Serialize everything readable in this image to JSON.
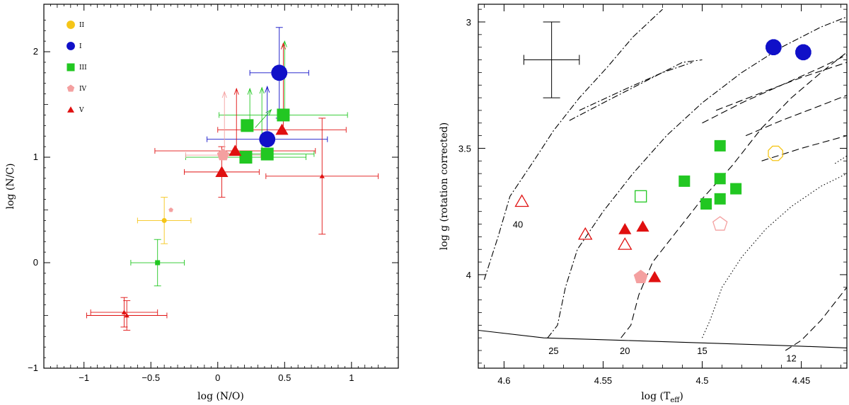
{
  "chart_data": [
    {
      "type": "scatter",
      "xlabel": "log (N/O)",
      "ylabel": "log (N/C)",
      "xlim": [
        -1.3,
        1.35
      ],
      "ylim": [
        -1.0,
        2.45
      ],
      "xticks": [
        -1,
        -0.5,
        0,
        0.5,
        1
      ],
      "xtick_labels": [
        "−1",
        "−0.5",
        "0",
        "0.5",
        "1"
      ],
      "yticks": [
        -1,
        0,
        1,
        2
      ],
      "ytick_labels": [
        "−1",
        "0",
        "1",
        "2"
      ],
      "legend_position": "top-left",
      "legend": [
        {
          "label": "II",
          "marker": "circle",
          "color": "#f5c518"
        },
        {
          "label": "I",
          "marker": "circle",
          "color": "#1010c8"
        },
        {
          "label": "III",
          "marker": "square",
          "color": "#22c722"
        },
        {
          "label": "IV",
          "marker": "pentagon",
          "color": "#f4a0a0"
        },
        {
          "label": "V",
          "marker": "triangle",
          "color": "#e01010"
        }
      ],
      "points": [
        {
          "cls": "II",
          "x": -0.4,
          "y": 0.4,
          "xerr": 0.2,
          "yerr": 0.22,
          "big": false
        },
        {
          "cls": "IV",
          "x": -0.35,
          "y": 0.5,
          "xerr": 0,
          "yerr": 0,
          "big": false
        },
        {
          "cls": "III",
          "x": -0.45,
          "y": 0.0,
          "xerr": 0.2,
          "yerr": 0.22,
          "big": false
        },
        {
          "cls": "V",
          "x": -0.7,
          "y": -0.47,
          "xerr": 0.25,
          "yerr": 0.14,
          "big": false
        },
        {
          "cls": "V",
          "x": -0.68,
          "y": -0.5,
          "xerr": 0.3,
          "yerr": 0.14,
          "big": false
        },
        {
          "cls": "I",
          "x": 0.46,
          "y": 1.8,
          "xerr": 0.22,
          "yerr": 0.43,
          "big": true
        },
        {
          "cls": "I",
          "x": 0.37,
          "y": 1.17,
          "xerr": 0.45,
          "yerr": 0,
          "big": true
        },
        {
          "cls": "III",
          "x": 0.22,
          "y": 1.3,
          "xerr": 0,
          "yerr": 0,
          "big": true
        },
        {
          "cls": "III",
          "x": 0.49,
          "y": 1.4,
          "xerr": 0.48,
          "yerr": 0,
          "big": true
        },
        {
          "cls": "III",
          "x": 0.21,
          "y": 1.0,
          "xerr": 0.45,
          "yerr": 0,
          "big": true
        },
        {
          "cls": "III",
          "x": 0.37,
          "y": 1.03,
          "xerr": 0.35,
          "yerr": 0,
          "big": true
        },
        {
          "cls": "IV",
          "x": 0.04,
          "y": 1.02,
          "xerr": 0.28,
          "yerr": 0,
          "big": true
        },
        {
          "cls": "V",
          "x": 0.13,
          "y": 1.06,
          "xerr": 0.6,
          "yerr": 0,
          "big": true
        },
        {
          "cls": "V",
          "x": 0.48,
          "y": 1.26,
          "xerr": 0.48,
          "yerr": 0,
          "big": true
        },
        {
          "cls": "V",
          "x": 0.03,
          "y": 0.86,
          "xerr": 0.28,
          "yerr": 0.24,
          "big": true
        },
        {
          "cls": "V",
          "x": 0.78,
          "y": 0.82,
          "xerr": 0.42,
          "yerr": 0.55,
          "big": false
        }
      ],
      "arrows": [
        {
          "cls": "IV",
          "x": 0.05,
          "y0": 1.05,
          "y1": 1.62
        },
        {
          "cls": "V",
          "x": 0.14,
          "y0": 1.08,
          "y1": 1.65
        },
        {
          "cls": "III",
          "x": 0.24,
          "y0": 1.33,
          "y1": 1.65
        },
        {
          "cls": "III",
          "x": 0.33,
          "y0": 1.05,
          "y1": 1.66
        },
        {
          "cls": "I",
          "x": 0.37,
          "y0": 1.2,
          "y1": 1.67
        },
        {
          "cls": "III",
          "x": 0.5,
          "y0": 1.43,
          "y1": 2.1
        },
        {
          "cls": "V",
          "x": 0.49,
          "y0": 1.28,
          "y1": 2.08
        },
        {
          "cls": "III",
          "x": 0.28,
          "y0": 1.28,
          "x1": 0.4,
          "y1": 1.45
        }
      ]
    },
    {
      "type": "scatter",
      "xlabel": "log (T",
      "xlabel_sub": "eff",
      "xlabel_end": ")",
      "ylabel": "log g  (rotation corrected)",
      "xlim": [
        4.613,
        4.427
      ],
      "ylim": [
        2.93,
        4.37
      ],
      "xticks": [
        4.6,
        4.55,
        4.5,
        4.45
      ],
      "xtick_labels": [
        "4.6",
        "4.55",
        "4.5",
        "4.45"
      ],
      "yticks": [
        3,
        3.5,
        4
      ],
      "ytick_labels": [
        "3",
        "3.5",
        "4"
      ],
      "track_labels": [
        {
          "text": "40",
          "x": 4.593,
          "y": 3.8
        },
        {
          "text": "25",
          "x": 4.575,
          "y": 4.3
        },
        {
          "text": "20",
          "x": 4.539,
          "y": 4.3
        },
        {
          "text": "15",
          "x": 4.5,
          "y": 4.3
        },
        {
          "text": "12",
          "x": 4.455,
          "y": 4.33
        }
      ],
      "error_cross": {
        "x": 4.576,
        "y": 3.15,
        "xerr": 0.014,
        "yerr": 0.15
      },
      "points": [
        {
          "cls": "I",
          "x": 4.464,
          "y": 3.1,
          "filled": true
        },
        {
          "cls": "I",
          "x": 4.449,
          "y": 3.12,
          "filled": true
        },
        {
          "cls": "II",
          "x": 4.463,
          "y": 3.52,
          "filled": false
        },
        {
          "cls": "III",
          "x": 4.491,
          "y": 3.49,
          "filled": true
        },
        {
          "cls": "III",
          "x": 4.509,
          "y": 3.63,
          "filled": true
        },
        {
          "cls": "III",
          "x": 4.491,
          "y": 3.62,
          "filled": true
        },
        {
          "cls": "III",
          "x": 4.491,
          "y": 3.7,
          "filled": true
        },
        {
          "cls": "III",
          "x": 4.483,
          "y": 3.66,
          "filled": true
        },
        {
          "cls": "III",
          "x": 4.498,
          "y": 3.72,
          "filled": true
        },
        {
          "cls": "III",
          "x": 4.531,
          "y": 3.69,
          "filled": false
        },
        {
          "cls": "IV",
          "x": 4.491,
          "y": 3.8,
          "filled": false
        },
        {
          "cls": "IV",
          "x": 4.531,
          "y": 4.01,
          "filled": true
        },
        {
          "cls": "V",
          "x": 4.524,
          "y": 4.01,
          "filled": true
        },
        {
          "cls": "V",
          "x": 4.539,
          "y": 3.82,
          "filled": true
        },
        {
          "cls": "V",
          "x": 4.53,
          "y": 3.81,
          "filled": true
        },
        {
          "cls": "V",
          "x": 4.539,
          "y": 3.88,
          "filled": false
        },
        {
          "cls": "V",
          "x": 4.559,
          "y": 3.84,
          "filled": false
        },
        {
          "cls": "V",
          "x": 4.591,
          "y": 3.71,
          "filled": false
        }
      ],
      "curves": [
        {
          "style": "solid",
          "pts": [
            [
              4.613,
              4.22
            ],
            [
              4.58,
              4.25
            ],
            [
              4.54,
              4.26
            ],
            [
              4.5,
              4.27
            ],
            [
              4.46,
              4.28
            ],
            [
              4.427,
              4.29
            ]
          ]
        },
        {
          "style": "dashdot",
          "pts": [
            [
              4.578,
              4.25
            ],
            [
              4.573,
              4.2
            ],
            [
              4.569,
              4.05
            ],
            [
              4.563,
              3.9
            ],
            [
              4.55,
              3.75
            ],
            [
              4.535,
              3.6
            ],
            [
              4.518,
              3.45
            ],
            [
              4.5,
              3.32
            ],
            [
              4.48,
              3.2
            ],
            [
              4.46,
              3.1
            ],
            [
              4.44,
              3.02
            ],
            [
              4.427,
              2.98
            ]
          ]
        },
        {
          "style": "dashdot",
          "pts": [
            [
              4.61,
              4.02
            ],
            [
              4.603,
              3.85
            ],
            [
              4.597,
              3.69
            ],
            [
              4.585,
              3.55
            ],
            [
              4.575,
              3.43
            ],
            [
              4.562,
              3.3
            ],
            [
              4.548,
              3.18
            ],
            [
              4.535,
              3.06
            ],
            [
              4.52,
              2.95
            ]
          ]
        },
        {
          "style": "dashdot",
          "pts": [
            [
              4.567,
              3.39
            ],
            [
              4.545,
              3.3
            ],
            [
              4.525,
              3.22
            ],
            [
              4.51,
              3.16
            ],
            [
              4.5,
              3.15
            ]
          ]
        },
        {
          "style": "dashdot",
          "pts": [
            [
              4.562,
              3.35
            ],
            [
              4.54,
              3.27
            ],
            [
              4.52,
              3.2
            ],
            [
              4.505,
              3.16
            ]
          ]
        },
        {
          "style": "dashed",
          "pts": [
            [
              4.541,
              4.25
            ],
            [
              4.536,
              4.2
            ],
            [
              4.532,
              4.08
            ],
            [
              4.525,
              3.95
            ],
            [
              4.515,
              3.85
            ],
            [
              4.5,
              3.7
            ],
            [
              4.485,
              3.57
            ],
            [
              4.47,
              3.42
            ],
            [
              4.455,
              3.3
            ],
            [
              4.44,
              3.2
            ],
            [
              4.427,
              3.12
            ]
          ]
        },
        {
          "style": "dashed",
          "pts": [
            [
              4.5,
              3.4
            ],
            [
              4.48,
              3.32
            ],
            [
              4.46,
              3.25
            ],
            [
              4.44,
              3.18
            ],
            [
              4.427,
              3.13
            ]
          ]
        },
        {
          "style": "dashed",
          "pts": [
            [
              4.493,
              3.35
            ],
            [
              4.47,
              3.28
            ],
            [
              4.45,
              3.22
            ],
            [
              4.427,
              3.16
            ]
          ]
        },
        {
          "style": "dashed",
          "pts": [
            [
              4.478,
              3.45
            ],
            [
              4.46,
              3.39
            ],
            [
              4.44,
              3.33
            ],
            [
              4.427,
              3.29
            ]
          ]
        },
        {
          "style": "dashed",
          "pts": [
            [
              4.47,
              3.55
            ],
            [
              4.45,
              3.5
            ],
            [
              4.427,
              3.45
            ]
          ]
        },
        {
          "style": "dotted",
          "pts": [
            [
              4.5,
              4.25
            ],
            [
              4.496,
              4.18
            ],
            [
              4.49,
              4.05
            ],
            [
              4.48,
              3.93
            ],
            [
              4.468,
              3.82
            ],
            [
              4.455,
              3.73
            ],
            [
              4.44,
              3.65
            ],
            [
              4.427,
              3.6
            ]
          ]
        },
        {
          "style": "dotted",
          "pts": [
            [
              4.433,
              3.56
            ],
            [
              4.427,
              3.53
            ]
          ]
        },
        {
          "style": "dashed",
          "pts": [
            [
              4.458,
              4.3
            ],
            [
              4.45,
              4.26
            ],
            [
              4.44,
              4.18
            ],
            [
              4.432,
              4.1
            ],
            [
              4.427,
              4.05
            ]
          ]
        }
      ]
    }
  ]
}
